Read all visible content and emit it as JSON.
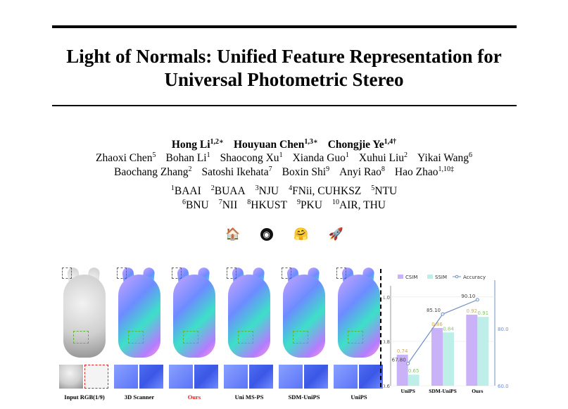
{
  "paper": {
    "title_line1": "Light of Normals: Unified Feature Representation for",
    "title_line2": "Universal Photometric Stereo"
  },
  "authors_main": [
    {
      "name": "Hong Li",
      "sup": "1,2∗"
    },
    {
      "name": "Houyuan Chen",
      "sup": "1,3∗"
    },
    {
      "name": "Chongjie Ye",
      "sup": "1,4†"
    }
  ],
  "authors_row2": [
    {
      "name": "Zhaoxi Chen",
      "sup": "5"
    },
    {
      "name": "Bohan Li",
      "sup": "1"
    },
    {
      "name": "Shaocong Xu",
      "sup": "1"
    },
    {
      "name": "Xianda Guo",
      "sup": "1"
    },
    {
      "name": "Xuhui Liu",
      "sup": "2"
    },
    {
      "name": "Yikai Wang",
      "sup": "6"
    }
  ],
  "authors_row3": [
    {
      "name": "Baochang Zhang",
      "sup": "2"
    },
    {
      "name": "Satoshi Ikehata",
      "sup": "7"
    },
    {
      "name": "Boxin Shi",
      "sup": "9"
    },
    {
      "name": "Anyi Rao",
      "sup": "8"
    },
    {
      "name": "Hao Zhao",
      "sup": "1,10‡"
    }
  ],
  "affils_row1": [
    {
      "sup": "1",
      "name": "BAAI"
    },
    {
      "sup": "2",
      "name": "BUAA"
    },
    {
      "sup": "3",
      "name": "NJU"
    },
    {
      "sup": "4",
      "name": "FNii, CUHKSZ"
    },
    {
      "sup": "5",
      "name": "NTU"
    }
  ],
  "affils_row2": [
    {
      "sup": "6",
      "name": "BNU"
    },
    {
      "sup": "7",
      "name": "NII"
    },
    {
      "sup": "8",
      "name": "HKUST"
    },
    {
      "sup": "9",
      "name": "PKU"
    },
    {
      "sup": "10",
      "name": "AIR, THU"
    }
  ],
  "links": {
    "home_icon": "🏠",
    "github_icon": "",
    "huggingface_icon": "🤗",
    "rocket_icon": "🚀"
  },
  "figure": {
    "panels": [
      {
        "label": "Input RGB(1/9)",
        "style": "rgb",
        "color": "#000000"
      },
      {
        "label": "3D Scanner",
        "style": "normal",
        "color": "#000000"
      },
      {
        "label": "Ours",
        "style": "normal",
        "color": "#e02020"
      },
      {
        "label": "Uni MS-PS",
        "style": "normal",
        "color": "#000000"
      },
      {
        "label": "SDM-UniPS",
        "style": "normal",
        "color": "#000000"
      },
      {
        "label": "UniPS",
        "style": "normal",
        "color": "#000000"
      }
    ]
  },
  "chart_data": {
    "type": "bar",
    "categories": [
      "UniPS",
      "SDM-UniPS",
      "Ours"
    ],
    "series": [
      {
        "name": "CSIM",
        "values": [
          0.74,
          0.86,
          0.92
        ],
        "color": "#c9b2f7"
      },
      {
        "name": "SSIM",
        "values": [
          0.65,
          0.84,
          0.91
        ],
        "color": "#bdeee7"
      },
      {
        "name": "Accuracy",
        "values": [
          67.8,
          85.1,
          90.1
        ],
        "color": "#6f8fc4",
        "type": "line"
      }
    ],
    "left_ticks": [
      "0.6",
      "0.8",
      "1.0"
    ],
    "right_ticks": [
      "60.0",
      "80.0"
    ],
    "ylim_left": [
      0.6,
      1.05
    ],
    "ylim_right": [
      60,
      95
    ],
    "bar_labels": {
      "csim": [
        "0.74",
        "0.86",
        "0.92"
      ],
      "ssim": [
        "0.65",
        "0.84",
        "0.91"
      ],
      "acc": [
        "67.80",
        "85.10",
        "90.10"
      ]
    },
    "legend": [
      "CSIM",
      "SSIM",
      "Accuracy"
    ],
    "legend_position": "top"
  },
  "colors": {
    "rule": "#000000",
    "red": "#e02020",
    "green": "#5fb53d"
  }
}
